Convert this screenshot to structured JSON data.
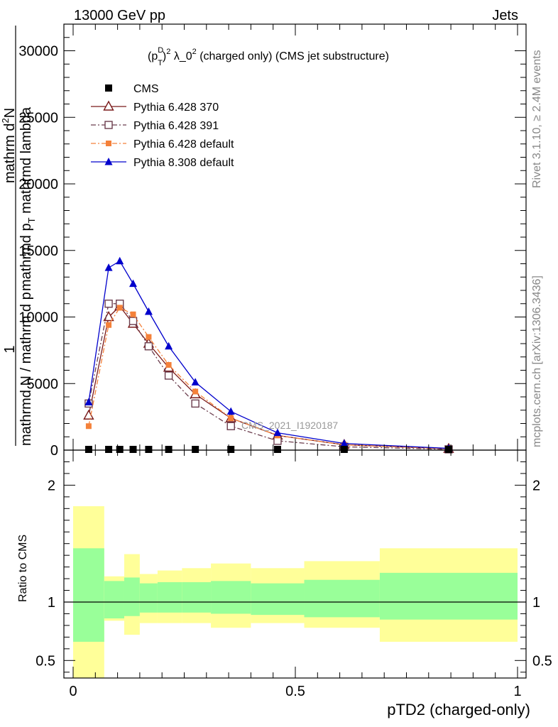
{
  "header": {
    "left": "13000 GeV pp",
    "right": "Jets"
  },
  "side": {
    "rivet": "Rivet 3.1.10, ≥ 2.4M events",
    "mcplots": "mcplots.cern.ch [arXiv:1306.3436]"
  },
  "watermark": "CMS_2021_I1920187",
  "colors": {
    "cms": "#000000",
    "py370": "#7a1a1a",
    "py391": "#6b3d4d",
    "pydef": "#f4813a",
    "py8": "#0000cc",
    "band_outer": "#ffff99",
    "band_inner": "#99ff99"
  },
  "chart_data": [
    {
      "type": "line",
      "title": "(p_T^D)^2 λ_0^2 (charged only) (CMS jet substructure)",
      "title_parts": {
        "p": "(p",
        "sup1": "D",
        "sub1": "T",
        "mid": ")",
        "sup2": "2",
        "lam": " λ_0",
        "sup3": "2",
        "rest": " (charged only) (CMS jet substructure)"
      },
      "ylabel_lines": [
        "1",
        "mathrm d N / mathrm d p_T mathrm d p_T mathrmd lambda",
        "mathrm d^2N"
      ],
      "ylabel_parts": {
        "one": "1",
        "left": "mathrmd N / mathrm d p",
        "mid": "mathrmd p",
        "midsub": "T",
        "right": " mathrmd lambda",
        "top": "mathrm d",
        "topsup": "2",
        "topN": "N"
      },
      "xlim": [
        0,
        1
      ],
      "ylim": [
        0,
        32000
      ],
      "yticks": [
        0,
        5000,
        10000,
        15000,
        20000,
        25000,
        30000
      ],
      "ytick_labels": [
        "0",
        "5000",
        "10000",
        "15000",
        "20000",
        "25000",
        "30000"
      ],
      "x": [
        0.035,
        0.08,
        0.105,
        0.135,
        0.17,
        0.215,
        0.275,
        0.355,
        0.46,
        0.61,
        0.845
      ],
      "series": [
        {
          "name": "CMS",
          "key": "cms",
          "marker": "square-filled",
          "dash": "none",
          "values": [
            0,
            0,
            0,
            0,
            0,
            0,
            0,
            0,
            0,
            0,
            0
          ]
        },
        {
          "name": "Pythia 6.428 370",
          "key": "py370",
          "marker": "triangle-open",
          "dash": "solid",
          "values": [
            2600,
            10000,
            10800,
            9500,
            8000,
            6200,
            4200,
            2400,
            1100,
            400,
            100
          ]
        },
        {
          "name": "Pythia 6.428 391",
          "key": "py391",
          "marker": "square-open",
          "dash": "dashdot",
          "values": [
            3500,
            11000,
            11000,
            9700,
            7800,
            5600,
            3500,
            1800,
            700,
            250,
            60
          ]
        },
        {
          "name": "Pythia 6.428 default",
          "key": "pydef",
          "marker": "square-filled-small",
          "dash": "dashdot",
          "values": [
            1800,
            9400,
            10700,
            10200,
            8500,
            6400,
            4400,
            2400,
            1100,
            400,
            100
          ]
        },
        {
          "name": "Pythia 8.308 default",
          "key": "py8",
          "marker": "triangle-filled",
          "dash": "solid",
          "values": [
            3600,
            13700,
            14200,
            12500,
            10400,
            7800,
            5100,
            2900,
            1300,
            500,
            130
          ]
        }
      ]
    },
    {
      "type": "area",
      "ylabel": "Ratio to CMS",
      "xlabel": "pTD2 (charged-only)",
      "xlim": [
        0,
        1
      ],
      "ylim": [
        0.35,
        2.3
      ],
      "yticks": [
        0.5,
        1,
        2
      ],
      "ytick_labels": [
        "0.5",
        "1",
        "2"
      ],
      "xtick_labels": [
        "0",
        "0.5",
        "1"
      ],
      "reference": 1,
      "bins": [
        {
          "x0": 0.0,
          "x1": 0.07,
          "outer": [
            0.35,
            1.82
          ],
          "inner": [
            0.66,
            1.46
          ]
        },
        {
          "x0": 0.07,
          "x1": 0.115,
          "outer": [
            0.84,
            1.22
          ],
          "inner": [
            0.86,
            1.18
          ]
        },
        {
          "x0": 0.115,
          "x1": 0.15,
          "outer": [
            0.72,
            1.41
          ],
          "inner": [
            0.88,
            1.21
          ]
        },
        {
          "x0": 0.15,
          "x1": 0.19,
          "outer": [
            0.82,
            1.24
          ],
          "inner": [
            0.91,
            1.16
          ]
        },
        {
          "x0": 0.19,
          "x1": 0.245,
          "outer": [
            0.82,
            1.27
          ],
          "inner": [
            0.91,
            1.17
          ]
        },
        {
          "x0": 0.245,
          "x1": 0.31,
          "outer": [
            0.82,
            1.29
          ],
          "inner": [
            0.91,
            1.17
          ]
        },
        {
          "x0": 0.31,
          "x1": 0.4,
          "outer": [
            0.78,
            1.33
          ],
          "inner": [
            0.9,
            1.18
          ]
        },
        {
          "x0": 0.4,
          "x1": 0.52,
          "outer": [
            0.82,
            1.29
          ],
          "inner": [
            0.89,
            1.16
          ]
        },
        {
          "x0": 0.52,
          "x1": 0.69,
          "outer": [
            0.78,
            1.35
          ],
          "inner": [
            0.87,
            1.19
          ]
        },
        {
          "x0": 0.69,
          "x1": 1.0,
          "outer": [
            0.66,
            1.46
          ],
          "inner": [
            0.85,
            1.25
          ]
        }
      ]
    }
  ]
}
